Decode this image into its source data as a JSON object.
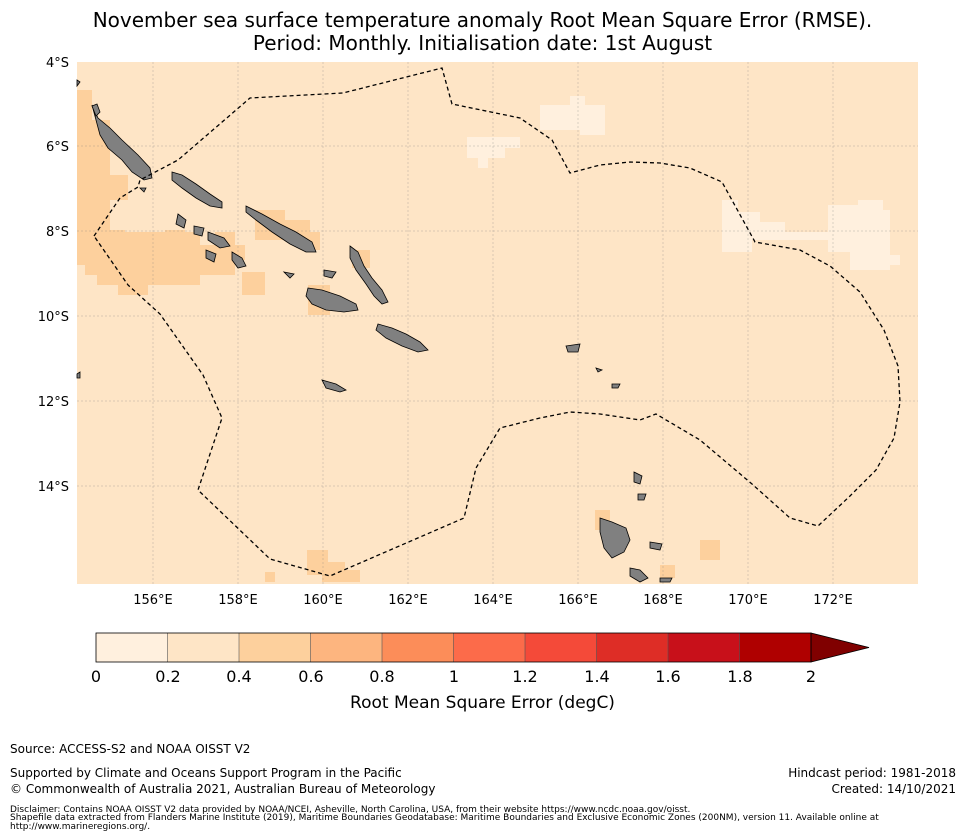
{
  "header": {
    "title_line1": "November sea surface temperature anomaly Root Mean Square Error (RMSE).",
    "title_line2": "Period: Monthly. Initialisation date: 1st August"
  },
  "map": {
    "lat_labels": [
      "4°S",
      "6°S",
      "8°S",
      "10°S",
      "12°S",
      "14°S"
    ],
    "lon_labels": [
      "156°E",
      "158°E",
      "160°E",
      "162°E",
      "164°E",
      "166°E",
      "168°E",
      "170°E",
      "172°E"
    ],
    "extent": {
      "lon_min": 154.2,
      "lon_max": 174.0,
      "lat_min": -16.3,
      "lat_max": -4.0
    },
    "ocean_color": "#fee5c6",
    "land_color": "#808080",
    "boundary": "Maritime Boundaries / Exclusive Economic Zone (dashed)"
  },
  "colorbar": {
    "tick_labels": [
      "0",
      "0.2",
      "0.4",
      "0.6",
      "0.8",
      "1",
      "1.2",
      "1.4",
      "1.6",
      "1.8",
      "2"
    ],
    "colors": [
      "#fff0de",
      "#fee5c6",
      "#fdd09d",
      "#fdb57f",
      "#fc8d59",
      "#fc6b4a",
      "#f44a39",
      "#de2d26",
      "#c8101a",
      "#af0000",
      "#800000"
    ],
    "extend": "max",
    "title": "Root Mean Square Error (degC)"
  },
  "chart_data": {
    "type": "heatmap",
    "title": "November sea surface temperature anomaly Root Mean Square Error (RMSE).",
    "subtitle": "Period: Monthly. Initialisation date: 1st August",
    "variable": "Root Mean Square Error (degC)",
    "bins": [
      0,
      0.2,
      0.4,
      0.6,
      0.8,
      1.0,
      1.2,
      1.4,
      1.6,
      1.8,
      2.0
    ],
    "dominant_value_range": [
      0.2,
      0.4
    ],
    "low_regions_range": [
      0.0,
      0.2
    ],
    "elevated_regions_range": [
      0.4,
      0.6
    ]
  },
  "footer": {
    "source": "Source: ACCESS-S2 and NOAA OISST V2",
    "support": "Supported by Climate and Oceans Support Program in the Pacific",
    "copyright": "© Commonwealth of Australia 2021, Australian Bureau of Meteorology",
    "hindcast": "Hindcast period: 1981-2018",
    "created": "Created: 14/10/2021",
    "disclaimer1": "Disclaimer: Contains NOAA OISST V2 data provided by NOAA/NCEI, Asheville, North Carolina, USA, from their website https://www.ncdc.noaa.gov/oisst.",
    "disclaimer2": "Shapefile data extracted from Flanders Marine Institute (2019), Maritime Boundaries Geodatabase: Maritime Boundaries and Exclusive Economic Zones (200NM), version 11. Available online at",
    "disclaimer3": "http://www.marineregions.org/."
  }
}
